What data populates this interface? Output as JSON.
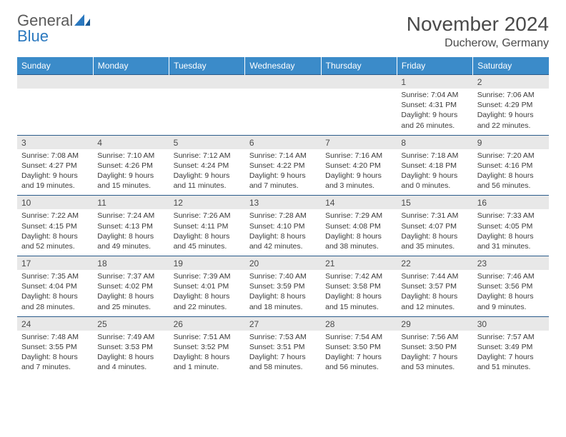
{
  "logo": {
    "word1": "General",
    "word2": "Blue"
  },
  "title": "November 2024",
  "location": "Ducherow, Germany",
  "colors": {
    "header_bg": "#3b8bc9",
    "header_border": "#2a5b8a",
    "daynum_bg": "#e8e8e8",
    "text": "#4a4a4a",
    "logo_gray": "#5a5a5a",
    "logo_blue": "#2a78bf"
  },
  "dayNames": [
    "Sunday",
    "Monday",
    "Tuesday",
    "Wednesday",
    "Thursday",
    "Friday",
    "Saturday"
  ],
  "weeks": [
    [
      null,
      null,
      null,
      null,
      null,
      {
        "n": "1",
        "sr": "7:04 AM",
        "ss": "4:31 PM",
        "dl": "9 hours and 26 minutes."
      },
      {
        "n": "2",
        "sr": "7:06 AM",
        "ss": "4:29 PM",
        "dl": "9 hours and 22 minutes."
      }
    ],
    [
      {
        "n": "3",
        "sr": "7:08 AM",
        "ss": "4:27 PM",
        "dl": "9 hours and 19 minutes."
      },
      {
        "n": "4",
        "sr": "7:10 AM",
        "ss": "4:26 PM",
        "dl": "9 hours and 15 minutes."
      },
      {
        "n": "5",
        "sr": "7:12 AM",
        "ss": "4:24 PM",
        "dl": "9 hours and 11 minutes."
      },
      {
        "n": "6",
        "sr": "7:14 AM",
        "ss": "4:22 PM",
        "dl": "9 hours and 7 minutes."
      },
      {
        "n": "7",
        "sr": "7:16 AM",
        "ss": "4:20 PM",
        "dl": "9 hours and 3 minutes."
      },
      {
        "n": "8",
        "sr": "7:18 AM",
        "ss": "4:18 PM",
        "dl": "9 hours and 0 minutes."
      },
      {
        "n": "9",
        "sr": "7:20 AM",
        "ss": "4:16 PM",
        "dl": "8 hours and 56 minutes."
      }
    ],
    [
      {
        "n": "10",
        "sr": "7:22 AM",
        "ss": "4:15 PM",
        "dl": "8 hours and 52 minutes."
      },
      {
        "n": "11",
        "sr": "7:24 AM",
        "ss": "4:13 PM",
        "dl": "8 hours and 49 minutes."
      },
      {
        "n": "12",
        "sr": "7:26 AM",
        "ss": "4:11 PM",
        "dl": "8 hours and 45 minutes."
      },
      {
        "n": "13",
        "sr": "7:28 AM",
        "ss": "4:10 PM",
        "dl": "8 hours and 42 minutes."
      },
      {
        "n": "14",
        "sr": "7:29 AM",
        "ss": "4:08 PM",
        "dl": "8 hours and 38 minutes."
      },
      {
        "n": "15",
        "sr": "7:31 AM",
        "ss": "4:07 PM",
        "dl": "8 hours and 35 minutes."
      },
      {
        "n": "16",
        "sr": "7:33 AM",
        "ss": "4:05 PM",
        "dl": "8 hours and 31 minutes."
      }
    ],
    [
      {
        "n": "17",
        "sr": "7:35 AM",
        "ss": "4:04 PM",
        "dl": "8 hours and 28 minutes."
      },
      {
        "n": "18",
        "sr": "7:37 AM",
        "ss": "4:02 PM",
        "dl": "8 hours and 25 minutes."
      },
      {
        "n": "19",
        "sr": "7:39 AM",
        "ss": "4:01 PM",
        "dl": "8 hours and 22 minutes."
      },
      {
        "n": "20",
        "sr": "7:40 AM",
        "ss": "3:59 PM",
        "dl": "8 hours and 18 minutes."
      },
      {
        "n": "21",
        "sr": "7:42 AM",
        "ss": "3:58 PM",
        "dl": "8 hours and 15 minutes."
      },
      {
        "n": "22",
        "sr": "7:44 AM",
        "ss": "3:57 PM",
        "dl": "8 hours and 12 minutes."
      },
      {
        "n": "23",
        "sr": "7:46 AM",
        "ss": "3:56 PM",
        "dl": "8 hours and 9 minutes."
      }
    ],
    [
      {
        "n": "24",
        "sr": "7:48 AM",
        "ss": "3:55 PM",
        "dl": "8 hours and 7 minutes."
      },
      {
        "n": "25",
        "sr": "7:49 AM",
        "ss": "3:53 PM",
        "dl": "8 hours and 4 minutes."
      },
      {
        "n": "26",
        "sr": "7:51 AM",
        "ss": "3:52 PM",
        "dl": "8 hours and 1 minute."
      },
      {
        "n": "27",
        "sr": "7:53 AM",
        "ss": "3:51 PM",
        "dl": "7 hours and 58 minutes."
      },
      {
        "n": "28",
        "sr": "7:54 AM",
        "ss": "3:50 PM",
        "dl": "7 hours and 56 minutes."
      },
      {
        "n": "29",
        "sr": "7:56 AM",
        "ss": "3:50 PM",
        "dl": "7 hours and 53 minutes."
      },
      {
        "n": "30",
        "sr": "7:57 AM",
        "ss": "3:49 PM",
        "dl": "7 hours and 51 minutes."
      }
    ]
  ]
}
